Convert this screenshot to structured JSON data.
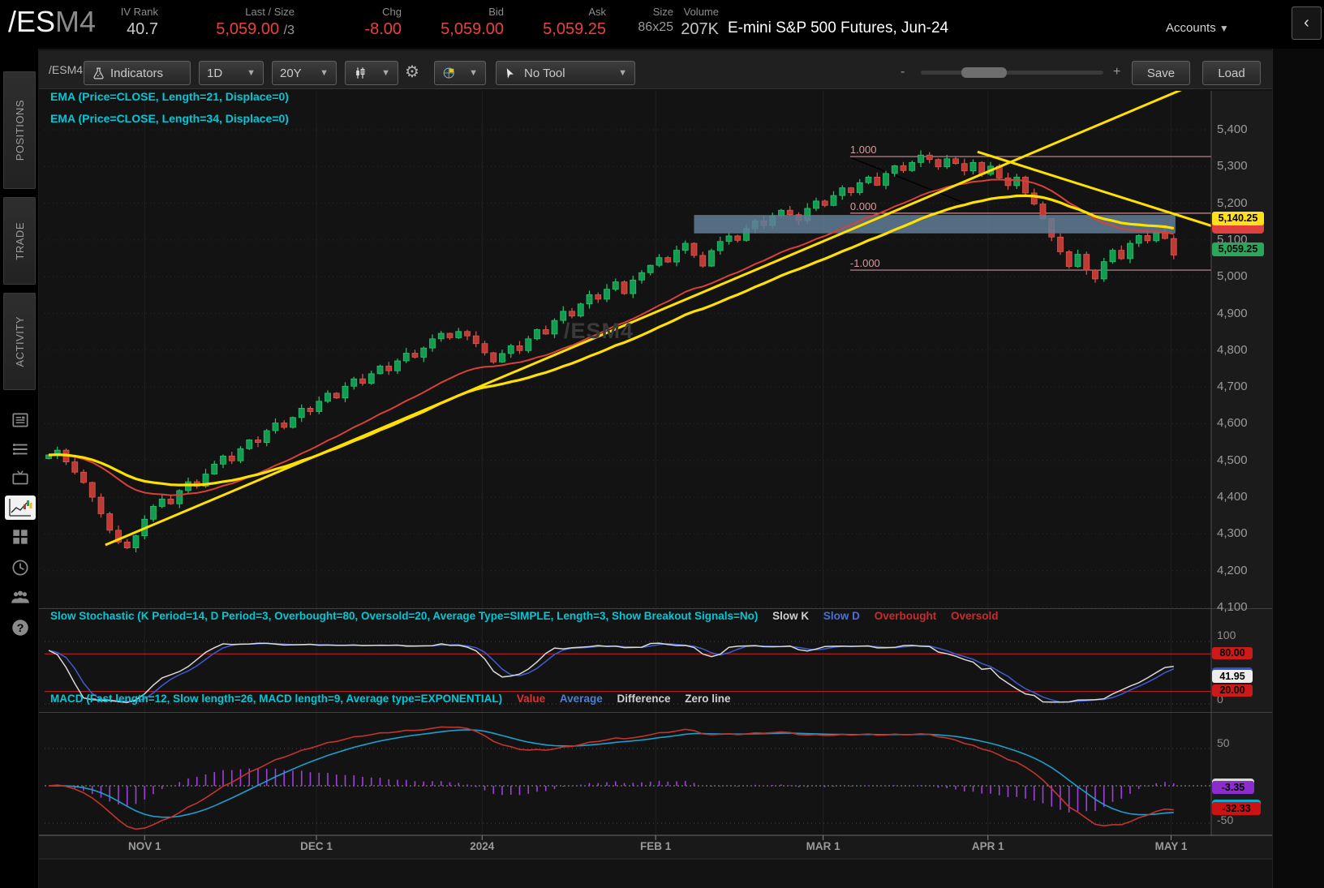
{
  "header": {
    "symbol_root": "/ES",
    "symbol_suffix": "M4",
    "iv_rank": {
      "label": "IV Rank",
      "value": "40.7"
    },
    "last_size": {
      "label": "Last / Size",
      "value": "5,059.00",
      "size": "/3"
    },
    "chg": {
      "label": "Chg",
      "value": "-8.00"
    },
    "bid": {
      "label": "Bid",
      "value": "5,059.00"
    },
    "ask": {
      "label": "Ask",
      "value": "5,059.25"
    },
    "size": {
      "label": "Size",
      "value": "86x25"
    },
    "volume": {
      "label": "Volume",
      "value": "207K"
    },
    "description": "E-mini S&P 500 Futures, Jun-24",
    "accounts_label": "Accounts"
  },
  "sidebar": {
    "tabs": [
      "POSITIONS",
      "TRADE",
      "ACTIVITY"
    ]
  },
  "toolbar": {
    "symbol": "/ESM4",
    "indicators": "Indicators",
    "timeframe": "1D",
    "range": "20Y",
    "tool": "No Tool",
    "zoom_out": "-",
    "zoom_in": "+",
    "save": "Save",
    "load": "Load"
  },
  "studies": {
    "ema1": "EMA (Price=CLOSE, Length=21, Displace=0)",
    "ema2": "EMA (Price=CLOSE, Length=34, Displace=0)"
  },
  "watermark": "/ESM4",
  "price_bubbles": {
    "trendline": "5,140.25",
    "last": "5,059.25"
  },
  "stochastic": {
    "title": "Slow Stochastic (K Period=14, D Period=3, Overbought=80, Oversold=20, Average Type=SIMPLE, Length=3, Show Breakout Signals=No)",
    "legend_k": "Slow K",
    "legend_d": "Slow D",
    "legend_ob": "Overbought",
    "legend_os": "Oversold",
    "axis_top": "100",
    "axis_bottom": "0",
    "overbought": "80.00",
    "current": "41.95",
    "oversold": "20.00"
  },
  "macd": {
    "title": "MACD (Fast length=12, Slow length=26, MACD length=9, Average type=EXPONENTIAL)",
    "legend_value": "Value",
    "legend_avg": "Average",
    "legend_diff": "Difference",
    "legend_zero": "Zero line",
    "axis_top": "50",
    "axis_bottom": "-50",
    "value": "-32.33",
    "difference": "-3.35"
  },
  "chart_data": {
    "type": "candlestick",
    "symbol": "/ESM4",
    "timeframe": "1D",
    "title": "E-mini S&P 500 Futures, Jun-24 daily candles with EMA(21), EMA(34), Slow Stochastic and MACD",
    "price_axis": {
      "min": 4100,
      "max": 5400,
      "tick_values": [
        5400,
        5300,
        5200,
        5100,
        5000,
        4900,
        4800,
        4700,
        4600,
        4500,
        4400,
        4300,
        4200,
        4100
      ]
    },
    "time_axis": [
      {
        "label": "NOV 1",
        "i": 11.0
      },
      {
        "label": "DEC 1",
        "i": 30.7
      },
      {
        "label": "2024",
        "i": 49.7
      },
      {
        "label": "FEB 1",
        "i": 69.6
      },
      {
        "label": "MAR 1",
        "i": 88.8
      },
      {
        "label": "APR 1",
        "i": 107.7
      },
      {
        "label": "MAY 1",
        "i": 128.7
      }
    ],
    "candles": {
      "first_open": 4505,
      "closes": [
        4515,
        4528,
        4496,
        4468,
        4440,
        4400,
        4355,
        4310,
        4278,
        4262,
        4295,
        4340,
        4375,
        4395,
        4382,
        4418,
        4442,
        4430,
        4463,
        4490,
        4512,
        4499,
        4532,
        4556,
        4549,
        4581,
        4602,
        4590,
        4617,
        4642,
        4633,
        4661,
        4683,
        4670,
        4702,
        4722,
        4710,
        4736,
        4757,
        4744,
        4771,
        4792,
        4781,
        4806,
        4831,
        4846,
        4834,
        4851,
        4839,
        4818,
        4793,
        4768,
        4791,
        4812,
        4799,
        4831,
        4856,
        4844,
        4881,
        4906,
        4893,
        4926,
        4951,
        4939,
        4966,
        4986,
        4954,
        4991,
        5011,
        5031,
        5052,
        5040,
        5072,
        5091,
        5058,
        5029,
        5071,
        5096,
        5111,
        5099,
        5131,
        5152,
        5139,
        5166,
        5181,
        5169,
        5153,
        5186,
        5206,
        5194,
        5221,
        5242,
        5229,
        5256,
        5271,
        5249,
        5281,
        5302,
        5289,
        5311,
        5331,
        5319,
        5299,
        5321,
        5308,
        5288,
        5311,
        5279,
        5301,
        5269,
        5248,
        5271,
        5228,
        5198,
        5158,
        5108,
        5068,
        5028,
        5061,
        5018,
        4994,
        5041,
        5072,
        5049,
        5091,
        5112,
        5098,
        5121,
        5104,
        5059
      ]
    },
    "ema": [
      {
        "length": 21,
        "color": "#d8413a",
        "width": 2
      },
      {
        "length": 34,
        "color": "#ffe100",
        "width": 3.2
      }
    ],
    "last_price": 5059.25,
    "annotations": {
      "trendlines": [
        {
          "from": {
            "i": 6.5,
            "price": 4270
          },
          "to": {
            "i": 130.0,
            "price": 5510
          },
          "color": "#ffe100"
        },
        {
          "from": {
            "i": 106.5,
            "price": 5340
          },
          "to": {
            "i": 133.4,
            "price": 5138
          },
          "color": "#ffe100"
        }
      ],
      "note_line": {
        "from": {
          "i": 92.1,
          "price": 5323
        },
        "to": {
          "i": 105.4,
          "price": 5197
        }
      },
      "fib_start_i": 91.9,
      "fib_levels": [
        {
          "label": "1.000",
          "price": 5327
        },
        {
          "label": "0.000",
          "price": 5173
        },
        {
          "label": "-1.000",
          "price": 5018
        }
      ],
      "box": {
        "i1": 74.0,
        "i2": 129.2,
        "price_top": 5168,
        "price_bottom": 5118
      }
    },
    "stochastic": {
      "k_period": 14,
      "d_period": 3,
      "overbought": 80,
      "oversold": 20,
      "current_k": 41.95
    },
    "macd": {
      "fast": 12,
      "slow": 26,
      "length": 9,
      "value": -32.33,
      "difference": -3.35
    },
    "colors": {
      "up": "#119c52",
      "up_stroke": "#2cc06c",
      "down": "#bf3a34",
      "down_stroke": "#da5850",
      "stoch_k": "#d9d9d9",
      "stoch_d": "#3e5bd0",
      "stoch_band": "#aa1f1f",
      "macd_value": "#c2342e",
      "macd_avg": "#1f9ecb",
      "macd_hist": "#a13ee0",
      "box_fill": "rgba(96,126,152,0.85)",
      "fib_line": "#c98f94"
    }
  }
}
